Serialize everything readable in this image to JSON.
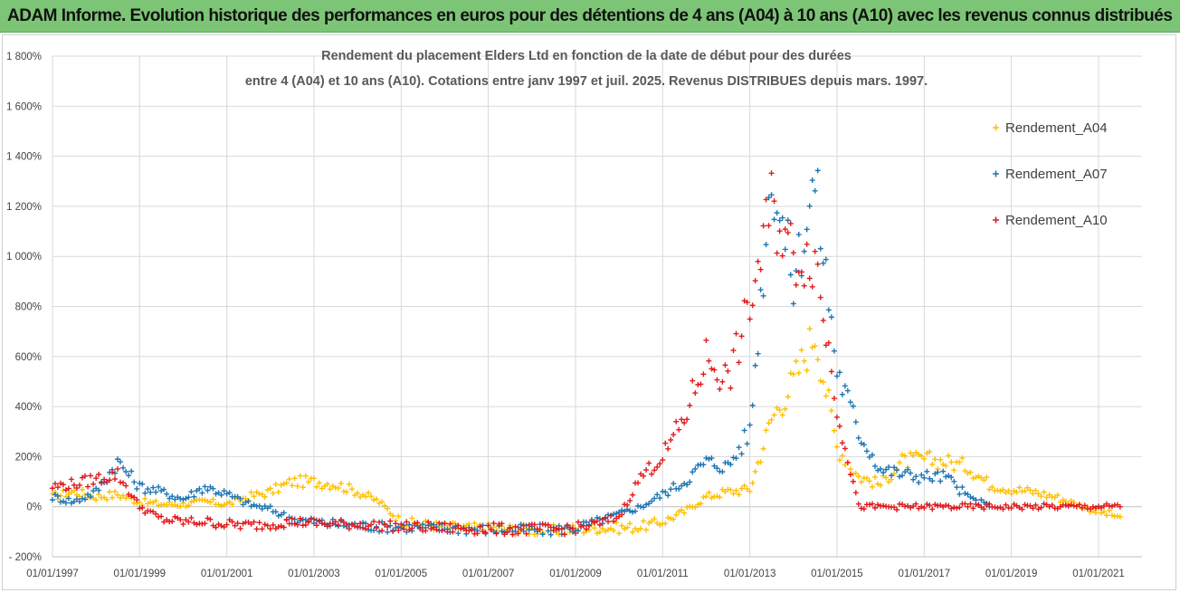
{
  "header": {
    "title": "ADAM Informe. Evolution historique des performances en euros pour des détentions de 4 ans (A04) à 10 ans (A10) avec les revenus connus distribués"
  },
  "chart_data": {
    "type": "scatter",
    "title_line1": "Rendement du placement Elders Ltd en fonction de la date de début pour des durées",
    "title_line2": "entre 4 (A04) et 10 ans (A10). Cotations entre janv 1997 et juil. 2025. Revenus DISTRIBUES depuis mars. 1997.",
    "xlabel": "",
    "ylabel": "",
    "x_range": [
      "01/01/1997",
      "31/12/2021"
    ],
    "ylim": [
      -200,
      1800
    ],
    "y_ticks": [
      -200,
      0,
      200,
      400,
      600,
      800,
      1000,
      1200,
      1400,
      1600,
      1800
    ],
    "y_tick_labels": [
      "- 200%",
      "0%",
      "200%",
      "400%",
      "600%",
      "800%",
      "1 000%",
      "1 200%",
      "1 400%",
      "1 600%",
      "1 800%"
    ],
    "x_ticks": [
      "01/01/1997",
      "01/01/1999",
      "01/01/2001",
      "01/01/2003",
      "01/01/2005",
      "01/01/2007",
      "01/01/2009",
      "01/01/2011",
      "01/01/2013",
      "01/01/2015",
      "01/01/2017",
      "01/01/2019",
      "01/01/2021"
    ],
    "grid": true,
    "legend_position": "right",
    "marker": "+",
    "series": [
      {
        "name": "Rendement_A04",
        "color": "#ffc000",
        "x": [
          "1997-01",
          "1997-07",
          "1998-01",
          "1998-07",
          "1999-01",
          "1999-07",
          "2000-01",
          "2000-07",
          "2001-01",
          "2001-07",
          "2002-01",
          "2002-07",
          "2003-01",
          "2003-07",
          "2004-01",
          "2004-07",
          "2005-01",
          "2005-07",
          "2006-01",
          "2006-07",
          "2007-01",
          "2007-07",
          "2008-01",
          "2008-07",
          "2009-01",
          "2009-07",
          "2010-01",
          "2010-07",
          "2011-01",
          "2011-07",
          "2012-01",
          "2012-07",
          "2013-01",
          "2013-07",
          "2014-01",
          "2014-07",
          "2015-01",
          "2015-07",
          "2016-01",
          "2016-07",
          "2017-01",
          "2017-07",
          "2018-01",
          "2018-07",
          "2019-01",
          "2019-07",
          "2020-01",
          "2020-07",
          "2021-01",
          "2021-07"
        ],
        "y": [
          40,
          60,
          40,
          50,
          20,
          10,
          10,
          20,
          10,
          40,
          60,
          100,
          100,
          90,
          60,
          20,
          -60,
          -70,
          -80,
          -85,
          -85,
          -90,
          -92,
          -95,
          -90,
          -85,
          -85,
          -80,
          -60,
          -20,
          40,
          60,
          70,
          350,
          500,
          700,
          240,
          120,
          90,
          180,
          190,
          180,
          160,
          90,
          70,
          60,
          40,
          10,
          -20,
          -40
        ]
      },
      {
        "name": "Rendement_A07",
        "color": "#1f77b4",
        "x": [
          "1997-01",
          "1997-07",
          "1998-01",
          "1998-07",
          "1999-01",
          "1999-07",
          "2000-01",
          "2000-07",
          "2001-01",
          "2001-07",
          "2002-01",
          "2002-07",
          "2003-01",
          "2003-07",
          "2004-01",
          "2004-07",
          "2005-01",
          "2005-07",
          "2006-01",
          "2006-07",
          "2007-01",
          "2007-07",
          "2008-01",
          "2008-07",
          "2009-01",
          "2009-07",
          "2010-01",
          "2010-07",
          "2011-01",
          "2011-07",
          "2012-01",
          "2012-07",
          "2013-01",
          "2013-07",
          "2014-01",
          "2014-07",
          "2015-01",
          "2015-07",
          "2016-01",
          "2016-07",
          "2017-01",
          "2017-07",
          "2018-01",
          "2018-07"
        ],
        "y": [
          40,
          20,
          60,
          180,
          80,
          60,
          30,
          80,
          50,
          10,
          -10,
          -50,
          -60,
          -70,
          -75,
          -80,
          -80,
          -85,
          -85,
          -88,
          -90,
          -92,
          -92,
          -93,
          -85,
          -60,
          -30,
          0,
          50,
          100,
          180,
          160,
          300,
          1350,
          900,
          1300,
          550,
          300,
          150,
          130,
          120,
          120,
          40,
          0
        ]
      },
      {
        "name": "Rendement_A10",
        "color": "#e31a1c",
        "x": [
          "1997-01",
          "1997-07",
          "1998-01",
          "1998-07",
          "1999-01",
          "1999-07",
          "2000-01",
          "2000-07",
          "2001-01",
          "2001-07",
          "2002-01",
          "2002-07",
          "2003-01",
          "2003-07",
          "2004-01",
          "2004-07",
          "2005-01",
          "2005-07",
          "2006-01",
          "2006-07",
          "2007-01",
          "2007-07",
          "2008-01",
          "2008-07",
          "2009-01",
          "2009-07",
          "2010-01",
          "2010-07",
          "2011-01",
          "2011-07",
          "2012-01",
          "2012-07",
          "2013-01",
          "2013-07",
          "2014-01",
          "2014-07",
          "2015-01",
          "2015-07",
          "2016-01",
          "2016-07",
          "2017-01",
          "2017-07",
          "2018-01",
          "2018-07",
          "2019-01",
          "2019-07",
          "2020-01",
          "2020-07",
          "2021-01",
          "2021-07"
        ],
        "y": [
          80,
          90,
          110,
          130,
          0,
          -50,
          -60,
          -60,
          -70,
          -75,
          -70,
          -60,
          -65,
          -70,
          -70,
          -75,
          -80,
          -82,
          -85,
          -88,
          -88,
          -90,
          -90,
          -92,
          -85,
          -70,
          -40,
          120,
          200,
          350,
          600,
          500,
          800,
          1200,
          1000,
          1000,
          400,
          0,
          0,
          0,
          0,
          0,
          0,
          0,
          0,
          0,
          0,
          0,
          0,
          0
        ]
      }
    ]
  }
}
